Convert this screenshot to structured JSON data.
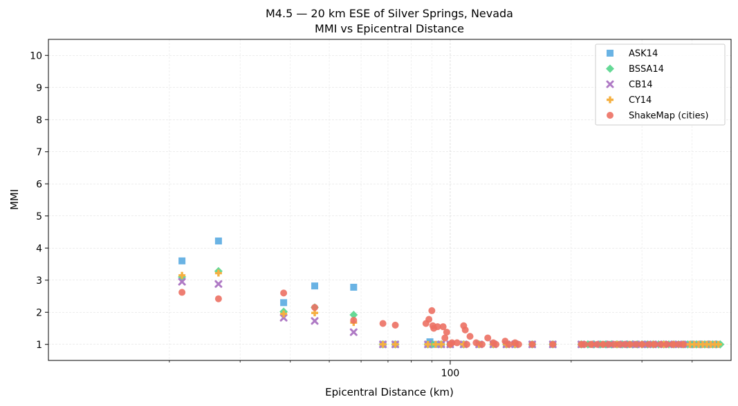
{
  "chart_data": {
    "type": "scatter",
    "title": "M4.5 — 20 km ESE of Silver Springs, Nevada",
    "subtitle": "MMI vs Epicentral Distance",
    "xlabel": "Epicentral Distance (km)",
    "ylabel": "MMI",
    "xscale": "log",
    "xlim": [
      10,
      500
    ],
    "ylim": [
      0.5,
      10.5
    ],
    "yticks": [
      1,
      2,
      3,
      4,
      5,
      6,
      7,
      8,
      9,
      10
    ],
    "xticks_major": [
      {
        "value": 100,
        "label": "100"
      }
    ],
    "xticks_minor": [
      20,
      30,
      40,
      50,
      60,
      70,
      80,
      90,
      200,
      300,
      400
    ],
    "grid": true,
    "legend_position": "top-right",
    "series": [
      {
        "name": "ASK14",
        "marker": "square",
        "color": "#5DADE2",
        "points": [
          [
            21.5,
            3.6
          ],
          [
            26.5,
            4.22
          ],
          [
            38.5,
            2.3
          ],
          [
            46,
            2.82
          ],
          [
            57.5,
            2.78
          ],
          [
            68,
            1.0
          ],
          [
            73,
            1.0
          ],
          [
            88,
            1.0
          ],
          [
            89,
            1.08
          ],
          [
            92,
            1.0
          ],
          [
            95,
            1.0
          ],
          [
            100,
            1.0
          ],
          [
            108,
            1.0
          ],
          [
            118,
            1.0
          ],
          [
            128,
            1.0
          ],
          [
            138,
            1.0
          ],
          [
            145,
            1.0
          ],
          [
            160,
            1.0
          ],
          [
            180,
            1.0
          ],
          [
            212,
            1.0
          ],
          [
            225,
            1.0
          ],
          [
            240,
            1.0
          ],
          [
            250,
            1.0
          ],
          [
            262,
            1.0
          ],
          [
            275,
            1.0
          ],
          [
            290,
            1.0
          ],
          [
            305,
            1.0
          ],
          [
            320,
            1.0
          ],
          [
            340,
            1.0
          ],
          [
            360,
            1.0
          ],
          [
            380,
            1.0
          ],
          [
            400,
            1.0
          ],
          [
            420,
            1.0
          ],
          [
            440,
            1.0
          ],
          [
            460,
            1.0
          ]
        ]
      },
      {
        "name": "BSSA14",
        "marker": "diamond",
        "color": "#58D68D",
        "points": [
          [
            21.5,
            3.1
          ],
          [
            26.5,
            3.28
          ],
          [
            38.5,
            2.02
          ],
          [
            46,
            2.15
          ],
          [
            57.5,
            1.92
          ],
          [
            68,
            1.0
          ],
          [
            73,
            1.0
          ],
          [
            88,
            1.0
          ],
          [
            90,
            1.0
          ],
          [
            95,
            1.0
          ],
          [
            100,
            1.0
          ],
          [
            108,
            1.0
          ],
          [
            118,
            1.0
          ],
          [
            128,
            1.0
          ],
          [
            138,
            1.0
          ],
          [
            145,
            1.0
          ],
          [
            160,
            1.0
          ],
          [
            180,
            1.0
          ],
          [
            212,
            1.0
          ],
          [
            220,
            1.0
          ],
          [
            228,
            1.0
          ],
          [
            236,
            1.0
          ],
          [
            244,
            1.0
          ],
          [
            252,
            1.0
          ],
          [
            260,
            1.0
          ],
          [
            268,
            1.0
          ],
          [
            276,
            1.0
          ],
          [
            284,
            1.0
          ],
          [
            292,
            1.0
          ],
          [
            300,
            1.0
          ],
          [
            310,
            1.0
          ],
          [
            320,
            1.0
          ],
          [
            330,
            1.0
          ],
          [
            340,
            1.0
          ],
          [
            350,
            1.0
          ],
          [
            360,
            1.0
          ],
          [
            370,
            1.0
          ],
          [
            380,
            1.0
          ],
          [
            390,
            1.0
          ],
          [
            400,
            1.0
          ],
          [
            410,
            1.0
          ],
          [
            420,
            1.0
          ],
          [
            430,
            1.0
          ],
          [
            440,
            1.0
          ],
          [
            450,
            1.0
          ],
          [
            460,
            1.0
          ],
          [
            470,
            1.0
          ]
        ]
      },
      {
        "name": "CB14",
        "marker": "x",
        "color": "#AF7AC5",
        "points": [
          [
            21.5,
            2.95
          ],
          [
            26.5,
            2.88
          ],
          [
            38.5,
            1.83
          ],
          [
            46,
            1.73
          ],
          [
            57.5,
            1.38
          ],
          [
            68,
            1.0
          ],
          [
            73,
            1.0
          ],
          [
            88,
            1.0
          ],
          [
            95,
            1.0
          ],
          [
            100,
            1.0
          ],
          [
            108,
            1.0
          ],
          [
            118,
            1.0
          ],
          [
            128,
            1.0
          ],
          [
            138,
            1.0
          ],
          [
            145,
            1.0
          ],
          [
            160,
            1.0
          ],
          [
            180,
            1.0
          ],
          [
            212,
            1.0
          ],
          [
            230,
            1.0
          ],
          [
            250,
            1.0
          ],
          [
            270,
            1.0
          ],
          [
            290,
            1.0
          ],
          [
            310,
            1.0
          ],
          [
            330,
            1.0
          ],
          [
            350,
            1.0
          ],
          [
            370,
            1.0
          ],
          [
            390,
            1.0
          ],
          [
            410,
            1.0
          ],
          [
            430,
            1.0
          ],
          [
            450,
            1.0
          ]
        ]
      },
      {
        "name": "CY14",
        "marker": "plus",
        "color": "#F5B041",
        "points": [
          [
            21.5,
            3.15
          ],
          [
            26.5,
            3.22
          ],
          [
            38.5,
            1.95
          ],
          [
            46,
            1.98
          ],
          [
            57.5,
            1.68
          ],
          [
            68,
            1.0
          ],
          [
            73,
            1.0
          ],
          [
            88,
            1.0
          ],
          [
            92,
            1.0
          ],
          [
            95,
            1.0
          ],
          [
            100,
            1.0
          ],
          [
            108,
            1.0
          ],
          [
            118,
            1.0
          ],
          [
            128,
            1.0
          ],
          [
            138,
            1.0
          ],
          [
            145,
            1.0
          ],
          [
            160,
            1.0
          ],
          [
            180,
            1.0
          ],
          [
            212,
            1.0
          ],
          [
            225,
            1.0
          ],
          [
            240,
            1.0
          ],
          [
            260,
            1.0
          ],
          [
            280,
            1.0
          ],
          [
            300,
            1.0
          ],
          [
            320,
            1.0
          ],
          [
            340,
            1.0
          ],
          [
            360,
            1.0
          ],
          [
            380,
            1.0
          ],
          [
            395,
            1.0
          ],
          [
            405,
            1.0
          ],
          [
            415,
            1.0
          ],
          [
            425,
            1.0
          ],
          [
            435,
            1.0
          ],
          [
            445,
            1.0
          ],
          [
            455,
            1.0
          ],
          [
            465,
            1.0
          ]
        ]
      },
      {
        "name": "ShakeMap (cities)",
        "marker": "circle",
        "color": "#EC7063",
        "points": [
          [
            21.5,
            2.62
          ],
          [
            26.5,
            2.42
          ],
          [
            38.5,
            2.6
          ],
          [
            46,
            2.15
          ],
          [
            57.5,
            1.75
          ],
          [
            68,
            1.65
          ],
          [
            73,
            1.6
          ],
          [
            87,
            1.65
          ],
          [
            88.5,
            1.78
          ],
          [
            90,
            2.05
          ],
          [
            90.5,
            1.58
          ],
          [
            91,
            1.5
          ],
          [
            93,
            1.55
          ],
          [
            96,
            1.55
          ],
          [
            97,
            1.2
          ],
          [
            98,
            1.38
          ],
          [
            101,
            1.05
          ],
          [
            104,
            1.05
          ],
          [
            108,
            1.58
          ],
          [
            109,
            1.45
          ],
          [
            112,
            1.25
          ],
          [
            116,
            1.05
          ],
          [
            124,
            1.2
          ],
          [
            128,
            1.05
          ],
          [
            137,
            1.1
          ],
          [
            145,
            1.05
          ],
          [
            100,
            1.0
          ],
          [
            110,
            1.0
          ],
          [
            120,
            1.0
          ],
          [
            130,
            1.0
          ],
          [
            140,
            1.0
          ],
          [
            148,
            1.0
          ],
          [
            160,
            1.0
          ],
          [
            180,
            1.0
          ],
          [
            212,
            1.0
          ],
          [
            216,
            1.0
          ],
          [
            224,
            1.0
          ],
          [
            232,
            1.0
          ],
          [
            240,
            1.0
          ],
          [
            248,
            1.0
          ],
          [
            256,
            1.0
          ],
          [
            264,
            1.0
          ],
          [
            272,
            1.0
          ],
          [
            280,
            1.0
          ],
          [
            290,
            1.0
          ],
          [
            300,
            1.0
          ],
          [
            312,
            1.0
          ],
          [
            322,
            1.0
          ],
          [
            334,
            1.0
          ],
          [
            346,
            1.0
          ],
          [
            358,
            1.0
          ],
          [
            370,
            1.0
          ],
          [
            380,
            1.0
          ]
        ]
      }
    ]
  }
}
